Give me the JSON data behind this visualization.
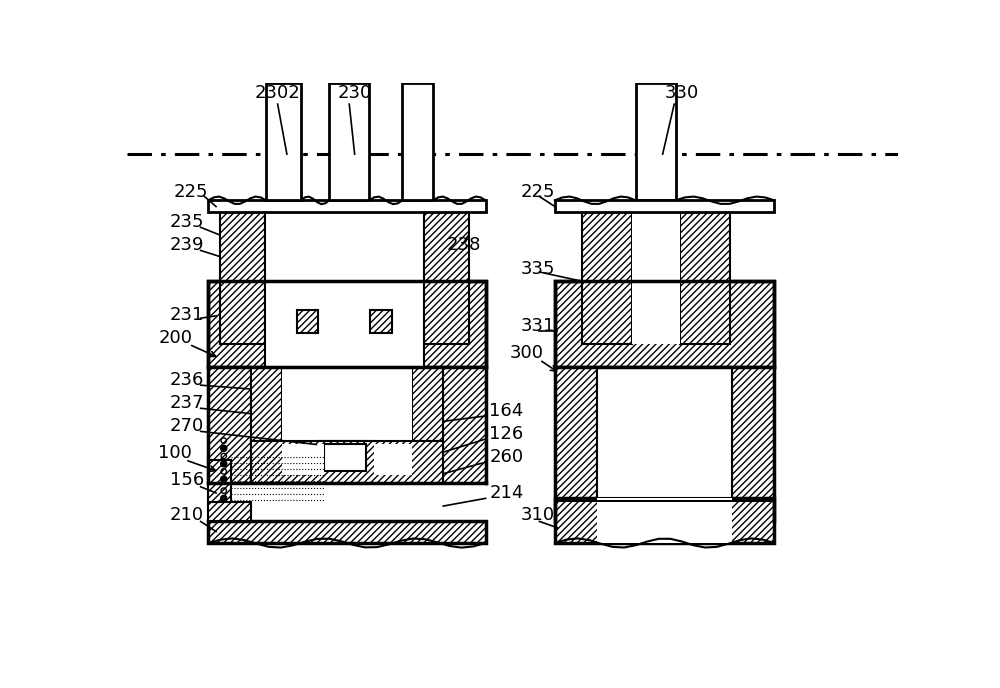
{
  "bg_color": "#ffffff",
  "fig_width": 10.0,
  "fig_height": 6.88
}
